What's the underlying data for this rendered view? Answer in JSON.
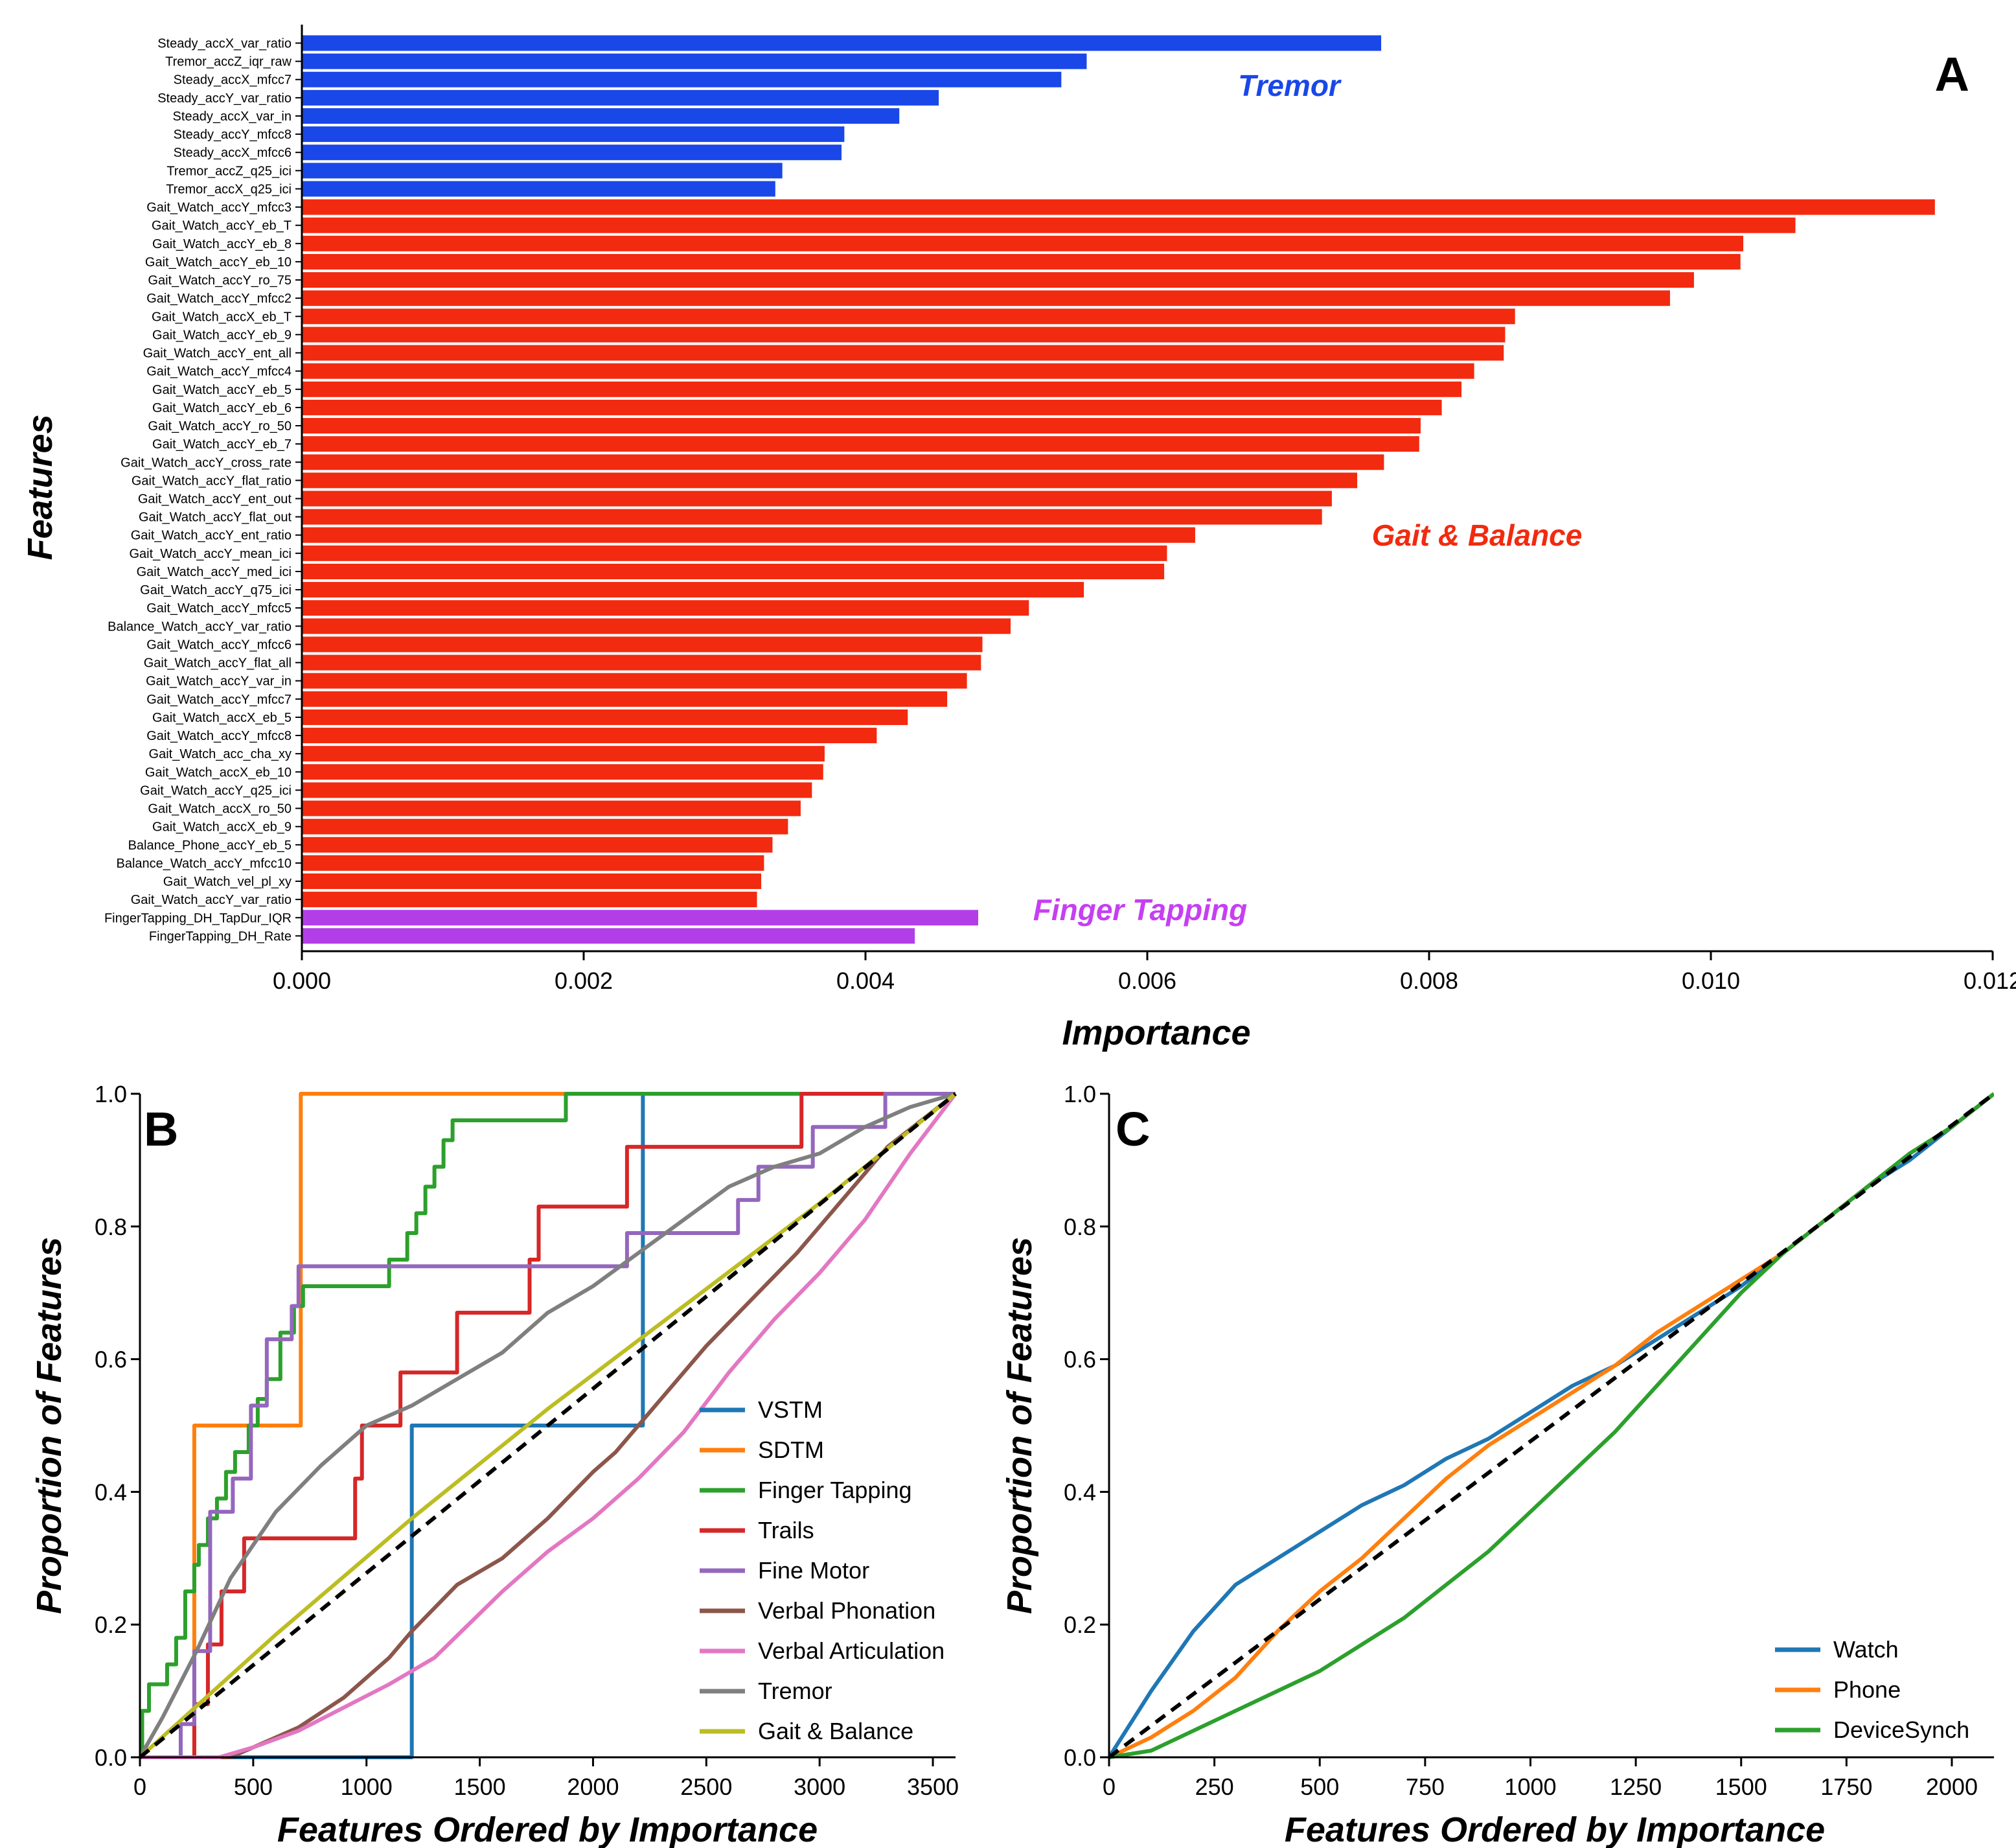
{
  "panel_labels": {
    "a": "A",
    "b": "B",
    "c": "C"
  },
  "chart_data": [
    {
      "type": "bar",
      "orientation": "horizontal",
      "panel": "A",
      "xlabel": "Importance",
      "ylabel": "Features",
      "xlim": [
        0,
        0.012
      ],
      "xticks": [
        "0.000",
        "0.002",
        "0.004",
        "0.006",
        "0.008",
        "0.010",
        "0.012"
      ],
      "group_labels": [
        {
          "text": "Tremor",
          "color": "#1a47e8"
        },
        {
          "text": "Gait & Balance",
          "color": "#f22a0f"
        },
        {
          "text": "Finger Tapping",
          "color": "#c63ff2"
        }
      ],
      "colors": {
        "Tremor": "#1a47e8",
        "Gait & Balance": "#f22a0f",
        "Finger Tapping": "#b23ee8"
      },
      "categories": [
        "Steady_accX_var_ratio",
        "Tremor_accZ_iqr_raw",
        "Steady_accX_mfcc7",
        "Steady_accY_var_ratio",
        "Steady_accX_var_in",
        "Steady_accY_mfcc8",
        "Steady_accX_mfcc6",
        "Tremor_accZ_q25_ici",
        "Tremor_accX_q25_ici",
        "Gait_Watch_accY_mfcc3",
        "Gait_Watch_accY_eb_T",
        "Gait_Watch_accY_eb_8",
        "Gait_Watch_accY_eb_10",
        "Gait_Watch_accY_ro_75",
        "Gait_Watch_accY_mfcc2",
        "Gait_Watch_accX_eb_T",
        "Gait_Watch_accY_eb_9",
        "Gait_Watch_accY_ent_all",
        "Gait_Watch_accY_mfcc4",
        "Gait_Watch_accY_eb_5",
        "Gait_Watch_accY_eb_6",
        "Gait_Watch_accY_ro_50",
        "Gait_Watch_accY_eb_7",
        "Gait_Watch_accY_cross_rate",
        "Gait_Watch_accY_flat_ratio",
        "Gait_Watch_accY_ent_out",
        "Gait_Watch_accY_flat_out",
        "Gait_Watch_accY_ent_ratio",
        "Gait_Watch_accY_mean_ici",
        "Gait_Watch_accY_med_ici",
        "Gait_Watch_accY_q75_ici",
        "Gait_Watch_accY_mfcc5",
        "Balance_Watch_accY_var_ratio",
        "Gait_Watch_accY_mfcc6",
        "Gait_Watch_accY_flat_all",
        "Gait_Watch_accY_var_in",
        "Gait_Watch_accY_mfcc7",
        "Gait_Watch_accX_eb_5",
        "Gait_Watch_accY_mfcc8",
        "Gait_Watch_acc_cha_xy",
        "Gait_Watch_accX_eb_10",
        "Gait_Watch_accY_q25_ici",
        "Gait_Watch_accX_ro_50",
        "Gait_Watch_accX_eb_9",
        "Balance_Phone_accY_eb_5",
        "Balance_Watch_accY_mfcc10",
        "Gait_Watch_vel_pl_xy",
        "Gait_Watch_accY_var_ratio",
        "FingerTapping_DH_TapDur_IQR",
        "FingerTapping_DH_Rate"
      ],
      "groups": [
        "Tremor",
        "Tremor",
        "Tremor",
        "Tremor",
        "Tremor",
        "Tremor",
        "Tremor",
        "Tremor",
        "Tremor",
        "Gait & Balance",
        "Gait & Balance",
        "Gait & Balance",
        "Gait & Balance",
        "Gait & Balance",
        "Gait & Balance",
        "Gait & Balance",
        "Gait & Balance",
        "Gait & Balance",
        "Gait & Balance",
        "Gait & Balance",
        "Gait & Balance",
        "Gait & Balance",
        "Gait & Balance",
        "Gait & Balance",
        "Gait & Balance",
        "Gait & Balance",
        "Gait & Balance",
        "Gait & Balance",
        "Gait & Balance",
        "Gait & Balance",
        "Gait & Balance",
        "Gait & Balance",
        "Gait & Balance",
        "Gait & Balance",
        "Gait & Balance",
        "Gait & Balance",
        "Gait & Balance",
        "Gait & Balance",
        "Gait & Balance",
        "Gait & Balance",
        "Gait & Balance",
        "Gait & Balance",
        "Gait & Balance",
        "Gait & Balance",
        "Gait & Balance",
        "Gait & Balance",
        "Gait & Balance",
        "Gait & Balance",
        "Finger Tapping",
        "Finger Tapping"
      ],
      "values": [
        0.00766,
        0.00557,
        0.00539,
        0.00452,
        0.00424,
        0.00385,
        0.00383,
        0.00341,
        0.00336,
        0.01159,
        0.0106,
        0.01023,
        0.01021,
        0.00988,
        0.00971,
        0.00861,
        0.00854,
        0.00853,
        0.00832,
        0.00823,
        0.00809,
        0.00794,
        0.00793,
        0.00768,
        0.00749,
        0.00731,
        0.00724,
        0.00634,
        0.00614,
        0.00612,
        0.00555,
        0.00516,
        0.00503,
        0.00483,
        0.00482,
        0.00472,
        0.00458,
        0.0043,
        0.00408,
        0.00371,
        0.0037,
        0.00362,
        0.00354,
        0.00345,
        0.00334,
        0.00328,
        0.00326,
        0.00323,
        0.0048,
        0.00435
      ]
    },
    {
      "type": "line",
      "panel": "B",
      "xlabel": "Features Ordered by Importance",
      "ylabel": "Proportion of Features",
      "xlim": [
        0,
        3600
      ],
      "ylim": [
        0,
        1.0
      ],
      "xticks": [
        "0",
        "500",
        "1000",
        "1500",
        "2000",
        "2500",
        "3000",
        "3500"
      ],
      "yticks": [
        "0.0",
        "0.2",
        "0.4",
        "0.6",
        "0.8",
        "1.0"
      ],
      "legend": "lower-right",
      "diagonal": {
        "x": [
          0,
          3600
        ],
        "y": [
          0,
          1
        ]
      },
      "series": [
        {
          "name": "VSTM",
          "color": "#1f77b4",
          "step": true,
          "x": [
            0,
            1200,
            1200,
            1220,
            2200,
            2220,
            3600
          ],
          "y": [
            0,
            0,
            0.5,
            0.5,
            0.5,
            1.0,
            1.0
          ]
        },
        {
          "name": "SDTM",
          "color": "#ff7f0e",
          "step": true,
          "x": [
            0,
            230,
            240,
            700,
            710,
            3600
          ],
          "y": [
            0,
            0,
            0.5,
            0.5,
            1.0,
            1.0
          ]
        },
        {
          "name": "Finger Tapping",
          "color": "#2ca02c",
          "step": true,
          "x": [
            0,
            10,
            40,
            120,
            160,
            200,
            240,
            260,
            300,
            340,
            380,
            420,
            480,
            520,
            560,
            620,
            680,
            720,
            1100,
            1180,
            1220,
            1260,
            1300,
            1340,
            1380,
            1880,
            3600
          ],
          "y": [
            0,
            0.07,
            0.11,
            0.14,
            0.18,
            0.25,
            0.29,
            0.32,
            0.36,
            0.39,
            0.43,
            0.46,
            0.5,
            0.54,
            0.57,
            0.64,
            0.68,
            0.71,
            0.75,
            0.79,
            0.82,
            0.86,
            0.89,
            0.93,
            0.96,
            1.0,
            1.0
          ]
        },
        {
          "name": "Trails",
          "color": "#d62728",
          "step": true,
          "x": [
            0,
            230,
            240,
            300,
            360,
            460,
            640,
            950,
            980,
            1100,
            1150,
            1370,
            1400,
            1720,
            1760,
            2020,
            2150,
            2500,
            2920,
            3600
          ],
          "y": [
            0,
            0,
            0.08,
            0.17,
            0.25,
            0.33,
            0.33,
            0.42,
            0.5,
            0.5,
            0.58,
            0.58,
            0.67,
            0.75,
            0.83,
            0.83,
            0.92,
            0.92,
            1.0,
            1.0
          ]
        },
        {
          "name": "Fine Motor",
          "color": "#9467bd",
          "step": true,
          "x": [
            0,
            100,
            180,
            240,
            310,
            410,
            490,
            560,
            670,
            700,
            2070,
            2150,
            2640,
            2730,
            2970,
            3290,
            3600
          ],
          "y": [
            0,
            0,
            0.05,
            0.16,
            0.37,
            0.42,
            0.53,
            0.63,
            0.68,
            0.74,
            0.74,
            0.79,
            0.84,
            0.89,
            0.95,
            1.0,
            1.0
          ]
        },
        {
          "name": "Verbal Phonation",
          "color": "#8c564b",
          "x": [
            0,
            400,
            500,
            700,
            900,
            1100,
            1200,
            1400,
            1600,
            1800,
            2000,
            2100,
            2300,
            2500,
            2700,
            2900,
            3100,
            3300,
            3600
          ],
          "y": [
            0,
            0,
            0.015,
            0.045,
            0.09,
            0.15,
            0.19,
            0.26,
            0.3,
            0.36,
            0.43,
            0.46,
            0.54,
            0.62,
            0.69,
            0.76,
            0.84,
            0.92,
            1.0
          ]
        },
        {
          "name": "Verbal Articulation",
          "color": "#e377c2",
          "x": [
            0,
            350,
            500,
            700,
            900,
            1100,
            1300,
            1450,
            1600,
            1800,
            2000,
            2200,
            2400,
            2600,
            2800,
            3000,
            3200,
            3400,
            3600
          ],
          "y": [
            0,
            0,
            0.015,
            0.04,
            0.075,
            0.11,
            0.15,
            0.2,
            0.25,
            0.31,
            0.36,
            0.42,
            0.49,
            0.58,
            0.66,
            0.73,
            0.81,
            0.91,
            1.0
          ]
        },
        {
          "name": "Tremor",
          "color": "#7f7f7f",
          "x": [
            0,
            100,
            250,
            400,
            600,
            800,
            1000,
            1200,
            1400,
            1600,
            1800,
            2000,
            2200,
            2400,
            2600,
            2800,
            3000,
            3200,
            3400,
            3600
          ],
          "y": [
            0,
            0.06,
            0.16,
            0.27,
            0.37,
            0.44,
            0.5,
            0.53,
            0.57,
            0.61,
            0.67,
            0.71,
            0.76,
            0.81,
            0.86,
            0.89,
            0.91,
            0.95,
            0.98,
            1.0
          ]
        },
        {
          "name": "Gait & Balance",
          "color": "#bcbd22",
          "x": [
            0,
            600,
            1200,
            1800,
            2400,
            3000,
            3600
          ],
          "y": [
            0,
            0.185,
            0.36,
            0.525,
            0.68,
            0.835,
            1.0
          ]
        }
      ]
    },
    {
      "type": "line",
      "panel": "C",
      "xlabel": "Features Ordered by Importance",
      "ylabel": "Proportion of Features",
      "xlim": [
        0,
        2100
      ],
      "ylim": [
        0,
        1.0
      ],
      "xticks": [
        "0",
        "250",
        "500",
        "750",
        "1000",
        "1250",
        "1500",
        "1750",
        "2000"
      ],
      "yticks": [
        "0.0",
        "0.2",
        "0.4",
        "0.6",
        "0.8",
        "1.0"
      ],
      "legend": "lower-right",
      "diagonal": {
        "x": [
          0,
          2100
        ],
        "y": [
          0,
          1
        ]
      },
      "series": [
        {
          "name": "Watch",
          "color": "#1f77b4",
          "x": [
            0,
            100,
            200,
            300,
            400,
            500,
            600,
            700,
            800,
            900,
            1000,
            1100,
            1200,
            1300,
            1400,
            1500,
            1600,
            1700,
            1800,
            1900,
            2000,
            2100
          ],
          "y": [
            0,
            0.1,
            0.19,
            0.26,
            0.3,
            0.34,
            0.38,
            0.41,
            0.45,
            0.48,
            0.52,
            0.56,
            0.59,
            0.63,
            0.67,
            0.71,
            0.76,
            0.81,
            0.86,
            0.9,
            0.95,
            1.0
          ]
        },
        {
          "name": "Phone",
          "color": "#ff7f0e",
          "x": [
            0,
            100,
            200,
            300,
            400,
            500,
            600,
            700,
            800,
            900,
            1000,
            1100,
            1200,
            1300,
            1400,
            1500,
            1600,
            1700,
            1800,
            1900,
            2000,
            2100
          ],
          "y": [
            0,
            0.03,
            0.07,
            0.12,
            0.19,
            0.25,
            0.3,
            0.36,
            0.42,
            0.47,
            0.51,
            0.55,
            0.59,
            0.64,
            0.68,
            0.72,
            0.76,
            0.81,
            0.86,
            0.91,
            0.95,
            1.0
          ]
        },
        {
          "name": "DeviceSynch",
          "color": "#2ca02c",
          "x": [
            0,
            100,
            200,
            300,
            400,
            500,
            600,
            700,
            800,
            900,
            1000,
            1100,
            1200,
            1300,
            1400,
            1500,
            1600,
            1700,
            1800,
            1900,
            2000,
            2100
          ],
          "y": [
            0,
            0.01,
            0.04,
            0.07,
            0.1,
            0.13,
            0.17,
            0.21,
            0.26,
            0.31,
            0.37,
            0.43,
            0.49,
            0.56,
            0.63,
            0.7,
            0.76,
            0.81,
            0.86,
            0.91,
            0.95,
            1.0
          ]
        }
      ]
    }
  ]
}
